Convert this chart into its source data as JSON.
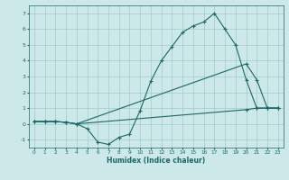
{
  "xlabel": "Humidex (Indice chaleur)",
  "bg_color": "#cce8e8",
  "grid_color": "#aacece",
  "line_color": "#1a6868",
  "xlim": [
    -0.5,
    23.5
  ],
  "ylim": [
    -1.5,
    7.5
  ],
  "yticks": [
    -1,
    0,
    1,
    2,
    3,
    4,
    5,
    6,
    7
  ],
  "xticks": [
    0,
    1,
    2,
    3,
    4,
    5,
    6,
    7,
    8,
    9,
    10,
    11,
    12,
    13,
    14,
    15,
    16,
    17,
    18,
    19,
    20,
    21,
    22,
    23
  ],
  "line1_x": [
    0,
    1,
    2,
    3,
    4,
    5,
    6,
    7,
    8,
    9,
    10,
    11,
    12,
    13,
    14,
    15,
    16,
    17,
    18,
    19,
    20,
    21,
    22,
    23
  ],
  "line1_y": [
    0.15,
    0.15,
    0.15,
    0.1,
    0.0,
    -0.3,
    -1.15,
    -1.3,
    -0.85,
    -0.65,
    0.85,
    2.7,
    4.0,
    4.9,
    5.8,
    6.2,
    6.45,
    7.0,
    6.0,
    5.0,
    2.8,
    1.0,
    1.0,
    1.0
  ],
  "line2_x": [
    0,
    1,
    2,
    3,
    4,
    20,
    21,
    22,
    23
  ],
  "line2_y": [
    0.15,
    0.15,
    0.15,
    0.1,
    0.0,
    3.8,
    2.8,
    1.0,
    1.0
  ],
  "line3_x": [
    0,
    1,
    2,
    3,
    4,
    20,
    21,
    22,
    23
  ],
  "line3_y": [
    0.15,
    0.15,
    0.15,
    0.1,
    0.0,
    0.9,
    1.0,
    1.0,
    1.0
  ]
}
